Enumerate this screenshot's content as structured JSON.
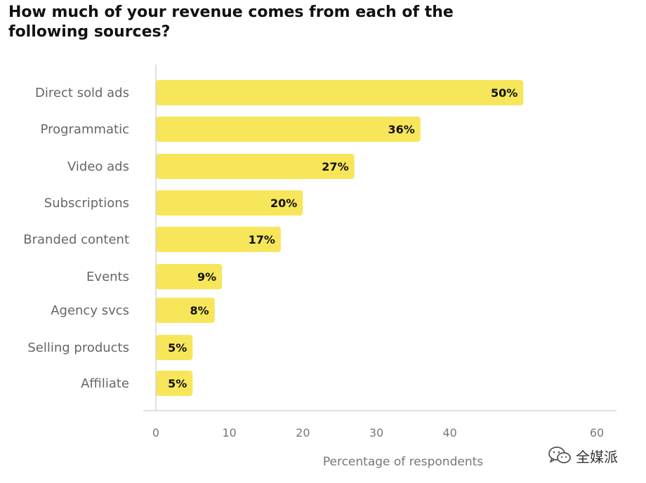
{
  "colors": {
    "bar": "#f7e65a",
    "axis": "#d6d6d6",
    "title": "#111111",
    "category_text": "#666666",
    "tick_text": "#777777"
  },
  "chart_data": {
    "type": "bar",
    "orientation": "horizontal",
    "title": "How much of your revenue comes from each of the following sources?",
    "xlabel": "Percentage of respondents",
    "ylabel": "",
    "xlim": [
      0,
      60
    ],
    "xticks": [
      0,
      10,
      20,
      30,
      40,
      60
    ],
    "grid": false,
    "categories": [
      "Direct sold ads",
      "Programmatic",
      "Video ads",
      "Subscriptions",
      "Branded content",
      "Events",
      "Agency svcs",
      "Selling products",
      "Affiliate"
    ],
    "values": [
      50,
      36,
      27,
      20,
      17,
      9,
      8,
      5,
      5
    ],
    "data_labels": [
      "50%",
      "36%",
      "27%",
      "20%",
      "17%",
      "9%",
      "8%",
      "5%",
      "5%"
    ]
  },
  "watermark": {
    "icon": "wechat-icon",
    "text": "全媒派"
  }
}
